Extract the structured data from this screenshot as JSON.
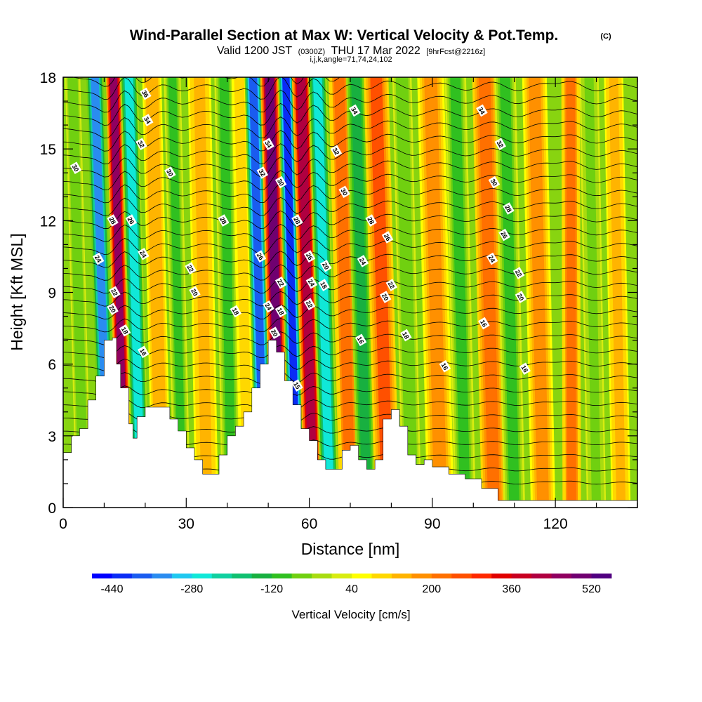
{
  "chart_data": {
    "type": "heatmap",
    "title": "Wind-Parallel Section at Max W: Vertical Velocity & Pot.Temp.",
    "copyright_mark": "(C)",
    "subtitle_valid": "Valid 1200 JST",
    "subtitle_utc": "(0300Z)",
    "subtitle_date": "THU 17 Mar 2022",
    "subtitle_fcst": "[9hrFcst@2216z]",
    "subtitle_indices": "i,j,k,angle=71,74,24,102",
    "xlabel": "Distance [nm]",
    "ylabel": "Height [Kft MSL]",
    "xlim": [
      0,
      140
    ],
    "ylim": [
      0,
      18
    ],
    "x_ticks": [
      "0",
      "30",
      "60",
      "90",
      "120"
    ],
    "x_tick_values": [
      0,
      30,
      60,
      90,
      120
    ],
    "y_ticks": [
      "0",
      "3",
      "6",
      "9",
      "12",
      "15",
      "18"
    ],
    "y_tick_values": [
      0,
      3,
      6,
      9,
      12,
      15,
      18
    ],
    "colorbar": {
      "title": "Vertical Velocity [cm/s]",
      "min": -480,
      "max": 560,
      "step": 40,
      "tick_labels": [
        "-440",
        "-280",
        "-120",
        "40",
        "200",
        "360",
        "520"
      ],
      "tick_values": [
        -440,
        -280,
        -120,
        40,
        200,
        360,
        520
      ],
      "colors": [
        "#0000ff",
        "#0a2cf5",
        "#1a5cf0",
        "#2a8cf0",
        "#1fc8f0",
        "#10e8d8",
        "#10d0a0",
        "#10c070",
        "#18b040",
        "#30c020",
        "#70d010",
        "#a8dc10",
        "#d8ec10",
        "#ffff00",
        "#ffd800",
        "#ffb400",
        "#ff9000",
        "#ff7000",
        "#ff5000",
        "#ff2800",
        "#e00000",
        "#c80020",
        "#b00040",
        "#900060",
        "#700070",
        "#500080"
      ]
    },
    "terrain_height_kft": [
      [
        0,
        2.3
      ],
      [
        2,
        3.0
      ],
      [
        4,
        3.3
      ],
      [
        6,
        4.5
      ],
      [
        8,
        5.5
      ],
      [
        10,
        7.0
      ],
      [
        12,
        7.1
      ],
      [
        13,
        6.0
      ],
      [
        14,
        5.0
      ],
      [
        16,
        3.5
      ],
      [
        17,
        2.9
      ],
      [
        18,
        3.8
      ],
      [
        20,
        4.2
      ],
      [
        24,
        4.2
      ],
      [
        26,
        3.7
      ],
      [
        28,
        3.2
      ],
      [
        30,
        2.5
      ],
      [
        32,
        2.0
      ],
      [
        34,
        1.4
      ],
      [
        36,
        1.4
      ],
      [
        38,
        2.2
      ],
      [
        40,
        3.0
      ],
      [
        42,
        3.4
      ],
      [
        44,
        4.0
      ],
      [
        46,
        5.0
      ],
      [
        48,
        6.0
      ],
      [
        50,
        7.0
      ],
      [
        52,
        6.5
      ],
      [
        54,
        5.3
      ],
      [
        56,
        4.3
      ],
      [
        58,
        3.3
      ],
      [
        60,
        2.8
      ],
      [
        62,
        2.0
      ],
      [
        64,
        1.6
      ],
      [
        66,
        1.6
      ],
      [
        68,
        2.4
      ],
      [
        70,
        2.6
      ],
      [
        72,
        2.0
      ],
      [
        74,
        1.6
      ],
      [
        76,
        2.0
      ],
      [
        78,
        3.7
      ],
      [
        80,
        4.1
      ],
      [
        82,
        3.4
      ],
      [
        84,
        2.2
      ],
      [
        86,
        1.8
      ],
      [
        88,
        2.0
      ],
      [
        90,
        1.7
      ],
      [
        94,
        1.4
      ],
      [
        98,
        1.2
      ],
      [
        102,
        0.8
      ],
      [
        106,
        0.3
      ],
      [
        120,
        0.3
      ],
      [
        140,
        0.3
      ]
    ],
    "vertical_velocity_bands": [
      {
        "x": 5,
        "w": -70,
        "width": 2.0,
        "tilt": 0.45
      },
      {
        "x": 11,
        "w": -330,
        "width": 2.2,
        "tilt": 0.55
      },
      {
        "x": 15,
        "w": 440,
        "width": 2.0,
        "tilt": 0.45
      },
      {
        "x": 19,
        "w": -250,
        "width": 2.3,
        "tilt": 0.5
      },
      {
        "x": 24,
        "w": 150,
        "width": 2.5,
        "tilt": 0.4
      },
      {
        "x": 29,
        "w": -90,
        "width": 2.2,
        "tilt": 0.4
      },
      {
        "x": 35,
        "w": 130,
        "width": 3.0,
        "tilt": 0.3
      },
      {
        "x": 41,
        "w": -100,
        "width": 2.5,
        "tilt": 0.3
      },
      {
        "x": 45,
        "w": 100,
        "width": 2.0,
        "tilt": 0.35
      },
      {
        "x": 49,
        "w": -400,
        "width": 2.2,
        "tilt": 0.45
      },
      {
        "x": 53,
        "w": 480,
        "width": 2.4,
        "tilt": 0.45
      },
      {
        "x": 57,
        "w": -440,
        "width": 2.0,
        "tilt": 0.45
      },
      {
        "x": 61,
        "w": 420,
        "width": 2.4,
        "tilt": 0.5
      },
      {
        "x": 65,
        "w": -280,
        "width": 2.4,
        "tilt": 0.5
      },
      {
        "x": 70,
        "w": 200,
        "width": 2.8,
        "tilt": 0.45
      },
      {
        "x": 74,
        "w": -150,
        "width": 2.5,
        "tilt": 0.45
      },
      {
        "x": 79,
        "w": 250,
        "width": 3.2,
        "tilt": 0.45
      },
      {
        "x": 85,
        "w": -80,
        "width": 2.5,
        "tilt": 0.4
      },
      {
        "x": 92,
        "w": 180,
        "width": 3.5,
        "tilt": 0.4
      },
      {
        "x": 98,
        "w": -90,
        "width": 2.8,
        "tilt": 0.4
      },
      {
        "x": 105,
        "w": 220,
        "width": 3.2,
        "tilt": 0.38
      },
      {
        "x": 110,
        "w": -110,
        "width": 2.8,
        "tilt": 0.38
      },
      {
        "x": 117,
        "w": 160,
        "width": 3.2,
        "tilt": 0.35
      },
      {
        "x": 124,
        "w": 200,
        "width": 2.4,
        "tilt": 0.05
      },
      {
        "x": 130,
        "w": -60,
        "width": 2.5,
        "tilt": 0.3
      },
      {
        "x": 136,
        "w": 140,
        "width": 2.5,
        "tilt": 0.3
      }
    ],
    "theta_contour_labels": [
      {
        "text": "36",
        "x": 20,
        "y": 17.3
      },
      {
        "text": "34",
        "x": 20.5,
        "y": 16.2
      },
      {
        "text": "32",
        "x": 19,
        "y": 15.2
      },
      {
        "text": "30",
        "x": 3,
        "y": 14.2
      },
      {
        "text": "30",
        "x": 26,
        "y": 14.0
      },
      {
        "text": "28",
        "x": 12,
        "y": 12.0
      },
      {
        "text": "26",
        "x": 16.5,
        "y": 12.0
      },
      {
        "text": "24",
        "x": 8.5,
        "y": 10.4
      },
      {
        "text": "24",
        "x": 19.5,
        "y": 10.6
      },
      {
        "text": "22",
        "x": 12.5,
        "y": 9.0
      },
      {
        "text": "20",
        "x": 12,
        "y": 8.3
      },
      {
        "text": "18",
        "x": 15,
        "y": 7.4
      },
      {
        "text": "16",
        "x": 19.5,
        "y": 6.5
      },
      {
        "text": "22",
        "x": 31,
        "y": 10.0
      },
      {
        "text": "20",
        "x": 32,
        "y": 9.0
      },
      {
        "text": "18",
        "x": 42,
        "y": 8.2
      },
      {
        "text": "28",
        "x": 39,
        "y": 12.0
      },
      {
        "text": "34",
        "x": 50,
        "y": 15.2
      },
      {
        "text": "32",
        "x": 48.5,
        "y": 14.0
      },
      {
        "text": "30",
        "x": 53,
        "y": 13.6
      },
      {
        "text": "28",
        "x": 57,
        "y": 12.0
      },
      {
        "text": "26",
        "x": 48,
        "y": 10.5
      },
      {
        "text": "26",
        "x": 60,
        "y": 10.5
      },
      {
        "text": "24",
        "x": 50,
        "y": 8.4
      },
      {
        "text": "22",
        "x": 53,
        "y": 9.4
      },
      {
        "text": "24",
        "x": 60.5,
        "y": 9.4
      },
      {
        "text": "22",
        "x": 60,
        "y": 8.5
      },
      {
        "text": "20",
        "x": 64,
        "y": 10.1
      },
      {
        "text": "18",
        "x": 63.5,
        "y": 9.3
      },
      {
        "text": "18",
        "x": 53,
        "y": 8.2
      },
      {
        "text": "20",
        "x": 51.5,
        "y": 7.3
      },
      {
        "text": "15",
        "x": 57,
        "y": 5.1
      },
      {
        "text": "34",
        "x": 71,
        "y": 16.6
      },
      {
        "text": "32",
        "x": 66.5,
        "y": 14.9
      },
      {
        "text": "30",
        "x": 68.5,
        "y": 13.2
      },
      {
        "text": "28",
        "x": 75,
        "y": 12.0
      },
      {
        "text": "26",
        "x": 79,
        "y": 11.3
      },
      {
        "text": "24",
        "x": 73,
        "y": 10.3
      },
      {
        "text": "22",
        "x": 80,
        "y": 9.3
      },
      {
        "text": "20",
        "x": 78.5,
        "y": 8.8
      },
      {
        "text": "16",
        "x": 72.5,
        "y": 7.0
      },
      {
        "text": "18",
        "x": 83.5,
        "y": 7.2
      },
      {
        "text": "16",
        "x": 93,
        "y": 5.9
      },
      {
        "text": "34",
        "x": 102,
        "y": 16.6
      },
      {
        "text": "32",
        "x": 106.5,
        "y": 15.2
      },
      {
        "text": "30",
        "x": 105,
        "y": 13.6
      },
      {
        "text": "28",
        "x": 108.5,
        "y": 12.5
      },
      {
        "text": "26",
        "x": 107.5,
        "y": 11.4
      },
      {
        "text": "24",
        "x": 104.5,
        "y": 10.4
      },
      {
        "text": "22",
        "x": 111,
        "y": 9.8
      },
      {
        "text": "20",
        "x": 111.5,
        "y": 8.8
      },
      {
        "text": "16",
        "x": 102.5,
        "y": 7.7
      },
      {
        "text": "16",
        "x": 112.5,
        "y": 5.8
      }
    ]
  }
}
